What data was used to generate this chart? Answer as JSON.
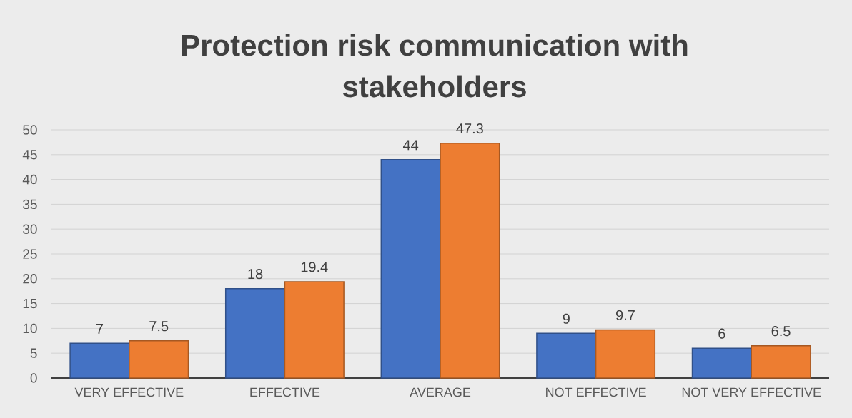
{
  "chart_data": {
    "type": "bar",
    "title": "Protection risk communication with stakeholders",
    "categories": [
      "VERY EFFECTIVE",
      "EFFECTIVE",
      "AVERAGE",
      "NOT EFFECTIVE",
      "NOT VERY EFFECTIVE"
    ],
    "series": [
      {
        "color": "#4472c4",
        "values": [
          7,
          18,
          44,
          9,
          6
        ]
      },
      {
        "color": "#ed7d31",
        "values": [
          7.5,
          19.4,
          47.3,
          9.7,
          6.5
        ]
      }
    ],
    "ylim": [
      0,
      50
    ],
    "yticks": [
      0,
      5,
      10,
      15,
      20,
      25,
      30,
      35,
      40,
      45,
      50
    ],
    "grid": "y",
    "data_labels": true
  }
}
